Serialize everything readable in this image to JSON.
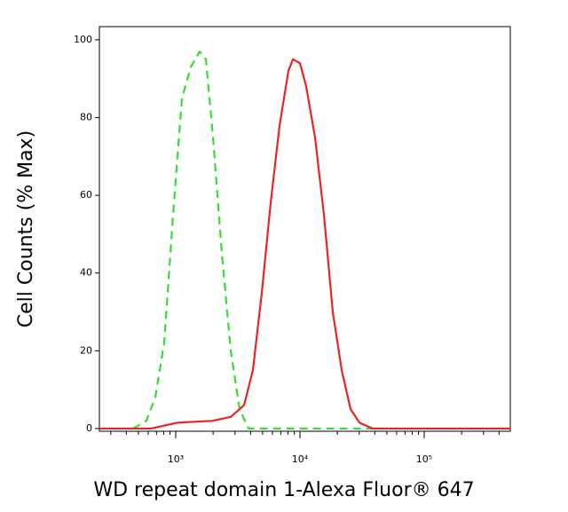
{
  "chart_data": {
    "type": "line",
    "xlabel": "WD repeat domain 1-Alexa Fluor® 647",
    "ylabel": "Cell Counts (% Max)",
    "xscale": "log",
    "xlim": [
      243,
      493000
    ],
    "ylim": [
      -0.7,
      103.4
    ],
    "xticks": [
      {
        "value": 1000,
        "label": "10³"
      },
      {
        "value": 10000,
        "label": "10⁴"
      },
      {
        "value": 100000,
        "label": "10⁵"
      }
    ],
    "yticks": [
      0,
      20,
      40,
      60,
      80,
      100
    ],
    "series": [
      {
        "color": "#33dd33",
        "dash": true,
        "x": [
          454,
          581,
          685,
          807,
          952,
          1122,
          1323,
          1559,
          1749,
          1995,
          2352,
          2772,
          3268,
          3852,
          50000
        ],
        "values": [
          0,
          2,
          8,
          22,
          55,
          85,
          93,
          97,
          95,
          75,
          45,
          20,
          5,
          0,
          0
        ]
      },
      {
        "color": "#ee2222",
        "dash": false,
        "x": [
          243,
          631,
          1033,
          1995,
          2772,
          3548,
          4178,
          4932,
          5808,
          6850,
          8072,
          8770,
          10000,
          11220,
          13210,
          15590,
          18370,
          21670,
          25530,
          30130,
          38520,
          493000
        ],
        "values": [
          0,
          0,
          1.5,
          2,
          3,
          6,
          15,
          35,
          58,
          78,
          92,
          95,
          94,
          88,
          75,
          55,
          30,
          15,
          5,
          1.5,
          0,
          0
        ]
      }
    ]
  }
}
